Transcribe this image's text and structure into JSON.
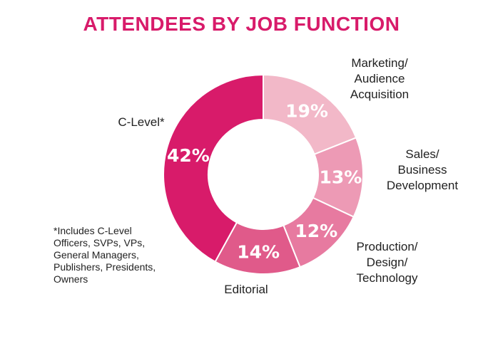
{
  "title": "ATTENDEES BY JOB FUNCTION",
  "title_color": "#d81b6a",
  "footnote": "*Includes C-Level\nOfficers, SVPs, VPs,\nGeneral Managers,\nPublishers, Presidents,\nOwners",
  "chart_data": {
    "type": "pie",
    "variant": "donut",
    "title": "ATTENDEES BY JOB FUNCTION",
    "slices": [
      {
        "label": "Marketing/\nAudience\nAcquisition",
        "value": 19,
        "display": "19%",
        "color": "#f2b8c8"
      },
      {
        "label": "Sales/\nBusiness\nDevelopment",
        "value": 13,
        "display": "13%",
        "color": "#ed9ab5"
      },
      {
        "label": "Production/\nDesign/\nTechnology",
        "value": 12,
        "display": "12%",
        "color": "#e77aa0"
      },
      {
        "label": "Editorial",
        "value": 14,
        "display": "14%",
        "color": "#e05a8a"
      },
      {
        "label": "C-Level*",
        "value": 42,
        "display": "42%",
        "color": "#d81b6a"
      }
    ]
  }
}
